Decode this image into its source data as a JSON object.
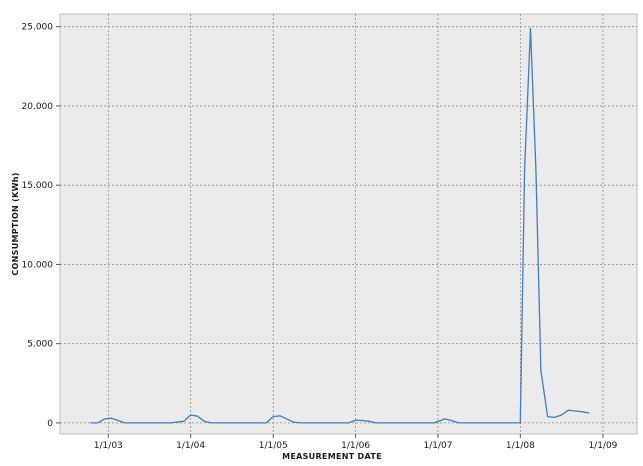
{
  "chart_data": {
    "type": "line",
    "title": "",
    "xlabel": "MEASUREMENT DATE",
    "ylabel": "CONSUMPTION (KWh)",
    "x_tick_labels": [
      "1/1/03",
      "1/1/04",
      "1/1/05",
      "1/1/06",
      "1/1/07",
      "1/1/08",
      "1/1/09"
    ],
    "x_tick_dates": [
      "2003-01-01",
      "2004-01-01",
      "2005-01-01",
      "2006-01-01",
      "2007-01-01",
      "2008-01-01",
      "2009-01-01"
    ],
    "xlim": [
      "2002-06-01",
      "2009-06-01"
    ],
    "y_tick_labels": [
      "0",
      "5.000",
      "10.000",
      "15.000",
      "20.000",
      "25.000"
    ],
    "y_tick_values": [
      0,
      5000,
      10000,
      15000,
      20000,
      25000
    ],
    "ylim": [
      -700,
      25800
    ],
    "grid": true,
    "series": [
      {
        "color": "#3d7ec4",
        "points": [
          [
            "2002-10-15",
            0
          ],
          [
            "2002-11-15",
            0
          ],
          [
            "2002-12-15",
            250
          ],
          [
            "2003-01-15",
            300
          ],
          [
            "2003-02-15",
            150
          ],
          [
            "2003-03-15",
            0
          ],
          [
            "2003-06-01",
            0
          ],
          [
            "2003-10-01",
            0
          ],
          [
            "2003-12-01",
            100
          ],
          [
            "2004-01-01",
            500
          ],
          [
            "2004-02-01",
            420
          ],
          [
            "2004-03-01",
            100
          ],
          [
            "2004-04-01",
            0
          ],
          [
            "2004-09-01",
            0
          ],
          [
            "2004-12-01",
            0
          ],
          [
            "2005-01-01",
            400
          ],
          [
            "2005-02-01",
            450
          ],
          [
            "2005-03-01",
            250
          ],
          [
            "2005-04-01",
            50
          ],
          [
            "2005-05-01",
            0
          ],
          [
            "2005-12-01",
            0
          ],
          [
            "2006-01-01",
            180
          ],
          [
            "2006-02-01",
            150
          ],
          [
            "2006-03-01",
            100
          ],
          [
            "2006-04-01",
            0
          ],
          [
            "2006-12-15",
            0
          ],
          [
            "2007-02-01",
            250
          ],
          [
            "2007-03-01",
            150
          ],
          [
            "2007-04-01",
            0
          ],
          [
            "2007-08-01",
            0
          ],
          [
            "2008-01-01",
            0
          ],
          [
            "2008-01-20",
            16000
          ],
          [
            "2008-02-15",
            24900
          ],
          [
            "2008-03-10",
            16000
          ],
          [
            "2008-04-01",
            3300
          ],
          [
            "2008-05-01",
            400
          ],
          [
            "2008-06-01",
            350
          ],
          [
            "2008-07-01",
            500
          ],
          [
            "2008-08-01",
            800
          ],
          [
            "2008-09-01",
            750
          ],
          [
            "2008-10-01",
            700
          ],
          [
            "2008-11-01",
            620
          ]
        ]
      }
    ]
  }
}
